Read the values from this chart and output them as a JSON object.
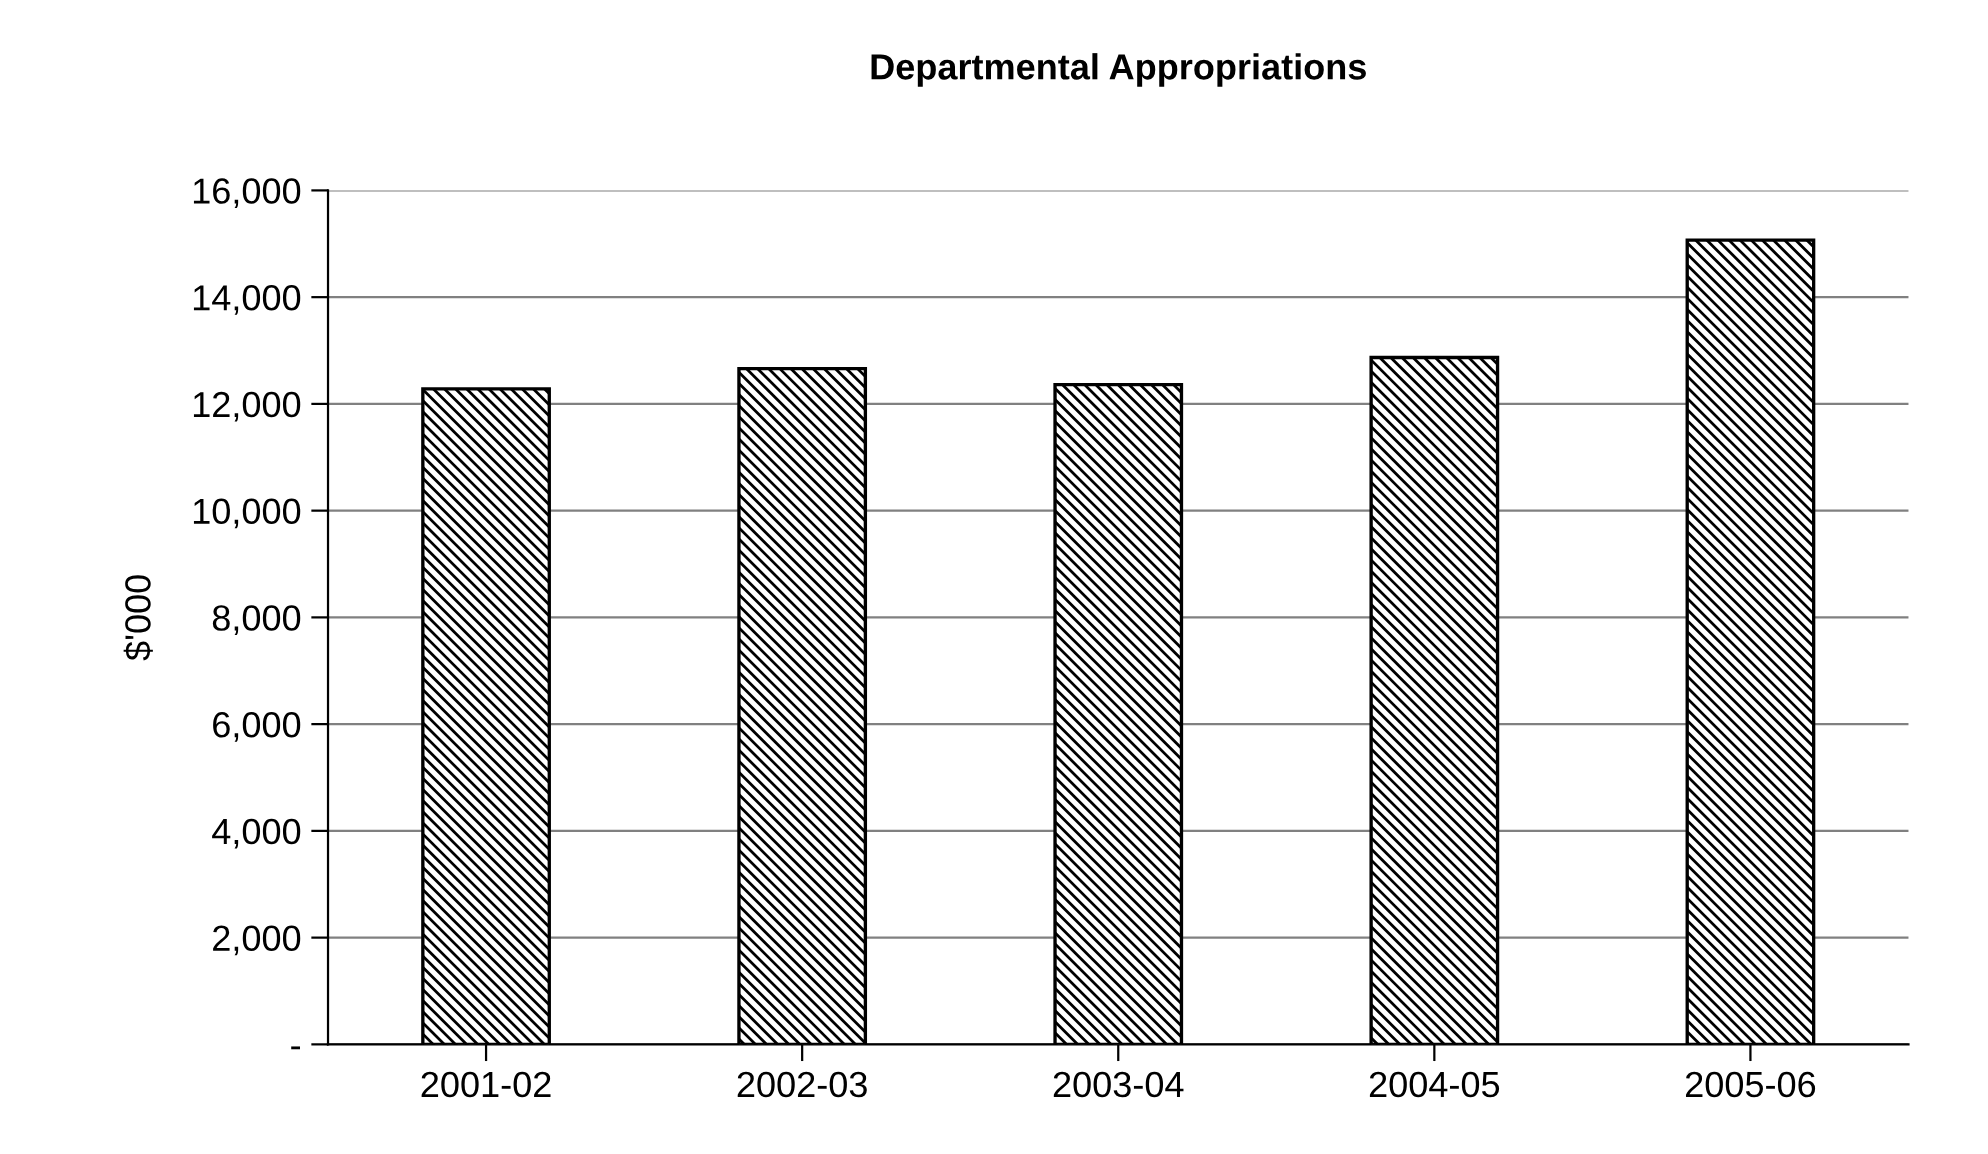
{
  "chart_data": {
    "type": "bar",
    "title": "Departmental Appropriations",
    "ylabel": "$'000",
    "categories": [
      "2001-02",
      "2002-03",
      "2003-04",
      "2004-05",
      "2005-06"
    ],
    "values": [
      12280,
      12660,
      12360,
      12870,
      15070
    ],
    "color": "#000000",
    "ylim": [
      0,
      16000
    ],
    "yticks": [
      {
        "value": 0,
        "label": "-"
      },
      {
        "value": 2000,
        "label": "2,000"
      },
      {
        "value": 4000,
        "label": "4,000"
      },
      {
        "value": 6000,
        "label": "6,000"
      },
      {
        "value": 8000,
        "label": "8,000"
      },
      {
        "value": 10000,
        "label": "10,000"
      },
      {
        "value": 12000,
        "label": "12,000"
      },
      {
        "value": 14000,
        "label": "14,000"
      },
      {
        "value": 16000,
        "label": "16,000"
      }
    ],
    "grid": "y",
    "legend": false
  }
}
